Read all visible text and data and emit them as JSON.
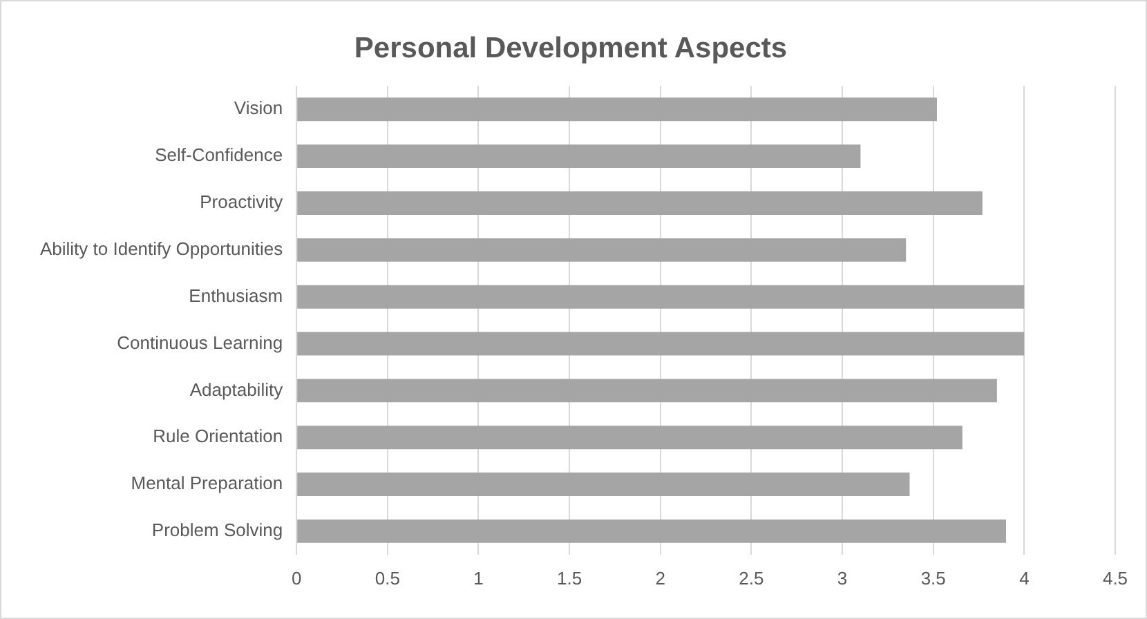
{
  "chart_data": {
    "type": "bar",
    "orientation": "horizontal",
    "title": "Personal Development Aspects",
    "categories": [
      "Vision",
      "Self-Confidence",
      "Proactivity",
      "Ability to Identify Opportunities",
      "Enthusiasm",
      "Continuous Learning",
      "Adaptability",
      "Rule Orientation",
      "Mental Preparation",
      "Problem Solving"
    ],
    "values": [
      3.52,
      3.1,
      3.77,
      3.35,
      4,
      4,
      3.85,
      3.66,
      3.37,
      3.9
    ],
    "color": "#a5a5a5",
    "xlim": [
      0,
      4.5
    ],
    "xticks": [
      0,
      0.5,
      1,
      1.5,
      2,
      2.5,
      3,
      3.5,
      4,
      4.5
    ],
    "grid": "x",
    "legend": false
  }
}
